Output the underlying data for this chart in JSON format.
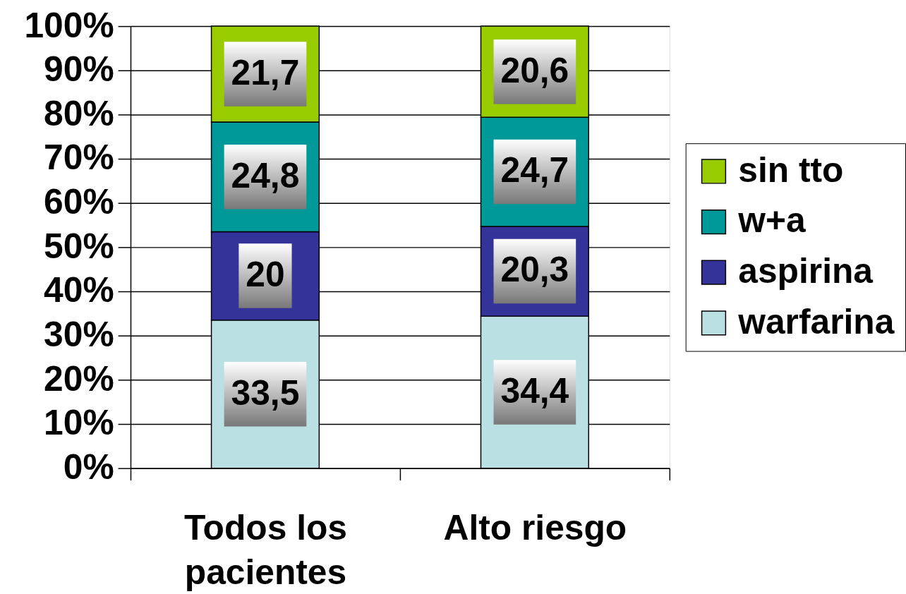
{
  "chart_data": {
    "type": "bar",
    "stacked": true,
    "categories": [
      "Todos los pacientes",
      "Alto riesgo"
    ],
    "series": [
      {
        "name": "warfarina",
        "color": "#bbe0e3",
        "values": [
          33.5,
          34.4
        ],
        "value_labels": [
          "33,5",
          "34,4"
        ]
      },
      {
        "name": "aspirina",
        "color": "#333399",
        "values": [
          20,
          20.3
        ],
        "value_labels": [
          "20",
          "20,3"
        ]
      },
      {
        "name": "w+a",
        "color": "#009999",
        "values": [
          24.8,
          24.7
        ],
        "value_labels": [
          "24,8",
          "24,7"
        ]
      },
      {
        "name": "sin tto",
        "color": "#99cc00",
        "values": [
          21.7,
          20.6
        ],
        "value_labels": [
          "21,7",
          "20,6"
        ]
      }
    ],
    "ylim": [
      0,
      100
    ],
    "yticks": [
      {
        "value": 0,
        "label": "0%"
      },
      {
        "value": 10,
        "label": "10%"
      },
      {
        "value": 20,
        "label": "20%"
      },
      {
        "value": 30,
        "label": "30%"
      },
      {
        "value": 40,
        "label": "40%"
      },
      {
        "value": 50,
        "label": "50%"
      },
      {
        "value": 60,
        "label": "60%"
      },
      {
        "value": 70,
        "label": "70%"
      },
      {
        "value": 80,
        "label": "80%"
      },
      {
        "value": 90,
        "label": "90%"
      },
      {
        "value": 100,
        "label": "100%"
      }
    ],
    "grid": "y",
    "legend": "right"
  }
}
